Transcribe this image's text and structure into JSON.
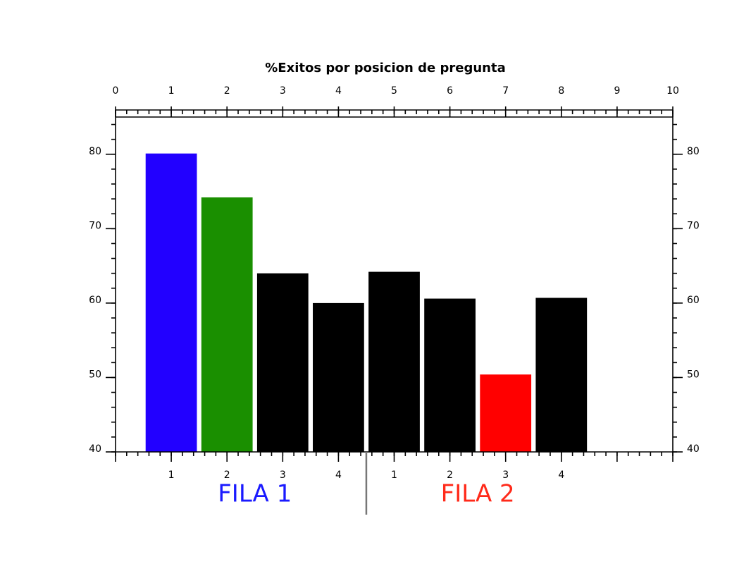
{
  "chart_data": {
    "type": "bar",
    "title": "%Exitos por posicion de pregunta",
    "x": [
      1,
      2,
      3,
      4,
      5,
      6,
      7,
      8
    ],
    "categories": [
      "1",
      "2",
      "3",
      "4",
      "1",
      "2",
      "3",
      "4"
    ],
    "values": [
      80.1,
      74.2,
      64.0,
      60.0,
      64.2,
      60.6,
      50.4,
      60.7
    ],
    "colors": [
      "#2200ff",
      "#1a8f00",
      "#000000",
      "#000000",
      "#000000",
      "#000000",
      "#ff0000",
      "#000000"
    ],
    "groups": [
      {
        "label": "FILA 1",
        "color": "#1a1aff"
      },
      {
        "label": "FILA 2",
        "color": "#ff2a1a"
      }
    ],
    "xlim": [
      0,
      10
    ],
    "xticks": [
      0,
      1,
      2,
      3,
      4,
      5,
      6,
      7,
      8,
      9,
      10
    ],
    "ylim": [
      40,
      85
    ],
    "yticks": [
      40,
      50,
      60,
      70,
      80
    ],
    "x_minor_step": 0.2,
    "y_minor_step": 2
  }
}
